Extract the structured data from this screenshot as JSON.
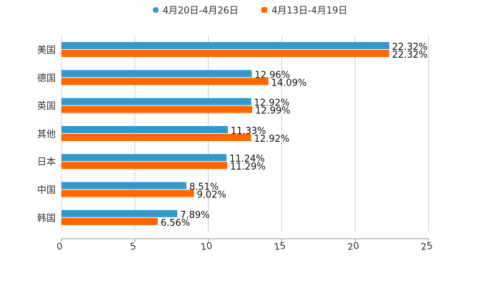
{
  "chart_data": {
    "type": "bar",
    "orientation": "horizontal",
    "categories": [
      "美国",
      "德国",
      "英国",
      "其他",
      "日本",
      "中国",
      "韩国"
    ],
    "series": [
      {
        "name": "4月20日-4月26日",
        "color": "#3399cc",
        "values": [
          22.32,
          12.96,
          12.92,
          11.33,
          11.24,
          8.51,
          7.89
        ],
        "labels": [
          "22.32%",
          "12.96%",
          "12.92%",
          "11.33%",
          "11.24%",
          "8.51%",
          "7.89%"
        ]
      },
      {
        "name": "4月13日-4月19日",
        "color": "#ff6600",
        "values": [
          22.32,
          14.09,
          12.99,
          12.92,
          11.29,
          9.02,
          6.56
        ],
        "labels": [
          "22.32%",
          "14.09%",
          "12.99%",
          "12.92%",
          "11.29%",
          "9.02%",
          "6.56%"
        ]
      }
    ],
    "xlim": [
      0,
      25
    ],
    "xticks": [
      "0",
      "5",
      "10",
      "15",
      "20",
      "25"
    ],
    "grid": true,
    "legend_position": "top-center",
    "title": "",
    "xlabel": "",
    "ylabel": ""
  }
}
